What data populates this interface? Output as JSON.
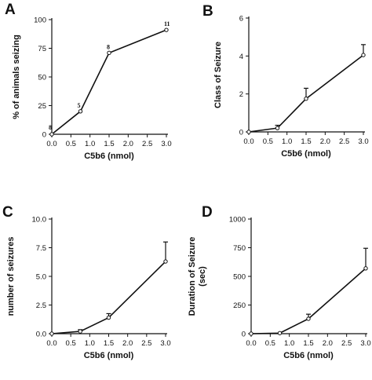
{
  "chart_data": [
    {
      "panel": "A",
      "type": "line",
      "xlabel": "C5b6 (nmol)",
      "ylabel": "% of animals seizing",
      "x": [
        0.0,
        0.75,
        1.5,
        3.0
      ],
      "y": [
        0,
        20,
        71,
        91
      ],
      "point_labels": [
        "8",
        "5",
        "8",
        "11"
      ],
      "xlim": [
        0,
        3
      ],
      "ylim": [
        0,
        100
      ],
      "xticks": [
        "0.0",
        "0.5",
        "1.0",
        "1.5",
        "2.0",
        "2.5",
        "3.0"
      ],
      "yticks": [
        "0",
        "25",
        "50",
        "75",
        "100"
      ],
      "grid": false
    },
    {
      "panel": "B",
      "type": "line",
      "xlabel": "C5b6 (nmol)",
      "ylabel": "Class of Seizure",
      "x": [
        0.0,
        0.75,
        1.5,
        3.0
      ],
      "y": [
        0.0,
        0.2,
        1.75,
        4.05
      ],
      "yerr": [
        0.0,
        0.15,
        0.55,
        0.55
      ],
      "xlim": [
        0,
        3
      ],
      "ylim": [
        0,
        6
      ],
      "xticks": [
        "0.0",
        "0.5",
        "1.0",
        "1.5",
        "2.0",
        "2.5",
        "3.0"
      ],
      "yticks": [
        "0",
        "2",
        "4",
        "6"
      ],
      "grid": false
    },
    {
      "panel": "C",
      "type": "line",
      "xlabel": "C5b6 (nmol)",
      "ylabel": "number of seizures",
      "x": [
        0.0,
        0.75,
        1.5,
        3.0
      ],
      "y": [
        0.0,
        0.2,
        1.4,
        6.3
      ],
      "yerr": [
        0.0,
        0.15,
        0.35,
        1.7
      ],
      "xlim": [
        0,
        3
      ],
      "ylim": [
        0,
        10
      ],
      "xticks": [
        "0.0",
        "0.5",
        "1.0",
        "1.5",
        "2.0",
        "2.5",
        "3.0"
      ],
      "yticks": [
        "0.0",
        "2.5",
        "5.0",
        "7.5",
        "10.0"
      ],
      "grid": false
    },
    {
      "panel": "D",
      "type": "line",
      "xlabel": "C5b6 (nmol)",
      "ylabel": "Duration of Seizure\n(sec)",
      "x": [
        0.0,
        0.75,
        1.5,
        3.0
      ],
      "y": [
        0,
        5,
        130,
        570
      ],
      "yerr": [
        0,
        0,
        40,
        175
      ],
      "xlim": [
        0,
        3
      ],
      "ylim": [
        0,
        1000
      ],
      "xticks": [
        "0.0",
        "0.5",
        "1.0",
        "1.5",
        "2.0",
        "2.5",
        "3.0"
      ],
      "yticks": [
        "0",
        "250",
        "500",
        "750",
        "1000"
      ],
      "grid": false
    }
  ]
}
